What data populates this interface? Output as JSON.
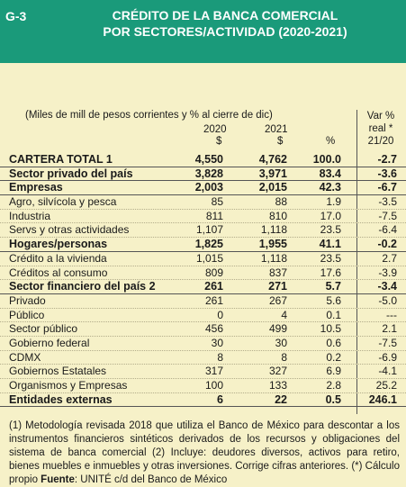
{
  "header": {
    "code": "G-3",
    "title_line1": "CRÉDITO DE LA BANCA COMERCIAL",
    "title_line2": "POR SECTORES/ACTIVIDAD (2020-2021)"
  },
  "table": {
    "subtitle": "(Miles de mill de pesos corrientes y % al cierre de dic)",
    "var_header_line1": "Var %",
    "var_header_line2": "real *",
    "var_header_line3": "21/20",
    "year_2020": "2020",
    "year_2021": "2021",
    "unit_2020": "$",
    "unit_2021": "$",
    "unit_pct": "%",
    "rows": [
      {
        "label": "CARTERA TOTAL 1",
        "v2020": "4,550",
        "v2021": "4,762",
        "pct": "100.0",
        "var": "-2.7",
        "bold": true
      },
      {
        "label": "Sector privado del país",
        "v2020": "3,828",
        "v2021": "3,971",
        "pct": "83.4",
        "var": "-3.6",
        "bold": true
      },
      {
        "label": "Empresas",
        "v2020": "2,003",
        "v2021": "2,015",
        "pct": "42.3",
        "var": "-6.7",
        "bold": true
      },
      {
        "label": "Agro, silvícola y pesca",
        "v2020": "85",
        "v2021": "88",
        "pct": "1.9",
        "var": "-3.5",
        "bold": false
      },
      {
        "label": "Industria",
        "v2020": "811",
        "v2021": "810",
        "pct": "17.0",
        "var": "-7.5",
        "bold": false
      },
      {
        "label": "Servs y otras actividades",
        "v2020": "1,107",
        "v2021": "1,118",
        "pct": "23.5",
        "var": "-6.4",
        "bold": false
      },
      {
        "label": "Hogares/personas",
        "v2020": "1,825",
        "v2021": "1,955",
        "pct": "41.1",
        "var": "-0.2",
        "bold": true
      },
      {
        "label": "Crédito a la vivienda",
        "v2020": "1,015",
        "v2021": "1,118",
        "pct": "23.5",
        "var": "2.7",
        "bold": false
      },
      {
        "label": "Créditos al consumo",
        "v2020": "809",
        "v2021": "837",
        "pct": "17.6",
        "var": "-3.9",
        "bold": false
      },
      {
        "label": "Sector financiero del país 2",
        "v2020": "261",
        "v2021": "271",
        "pct": "5.7",
        "var": "-3.4",
        "bold": true
      },
      {
        "label": "Privado",
        "v2020": "261",
        "v2021": "267",
        "pct": "5.6",
        "var": "-5.0",
        "bold": false
      },
      {
        "label": "Público",
        "v2020": "0",
        "v2021": "4",
        "pct": "0.1",
        "var": "---",
        "bold": false
      },
      {
        "label": "Sector público",
        "v2020": "456",
        "v2021": "499",
        "pct": "10.5",
        "var": "2.1",
        "bold": false
      },
      {
        "label": "Gobierno federal",
        "v2020": "30",
        "v2021": "30",
        "pct": "0.6",
        "var": "-7.5",
        "bold": false
      },
      {
        "label": "CDMX",
        "v2020": "8",
        "v2021": "8",
        "pct": "0.2",
        "var": "-6.9",
        "bold": false
      },
      {
        "label": "Gobiernos Estatales",
        "v2020": "317",
        "v2021": "327",
        "pct": "6.9",
        "var": "-4.1",
        "bold": false
      },
      {
        "label": "Organismos y Empresas",
        "v2020": "100",
        "v2021": "133",
        "pct": "2.8",
        "pct_": "",
        "var": "25.2",
        "bold": false
      },
      {
        "label": "Entidades externas",
        "v2020": "6",
        "v2021": "22",
        "pct": "0.5",
        "var": "246.1",
        "bold": true
      }
    ]
  },
  "notes": {
    "text": "(1) Metodología revisada 2018 que utiliza el Banco de México para descontar a los instrumentos financieros sintéticos derivados de los recursos y obligaciones del sistema de banca comercial (2) Incluye: deudores diversos, activos para retiro, bienes muebles e inmuebles y otras inversiones. Corrige cifras anteriores. (*) Cálculo propio ",
    "fuente_label": "Fuente",
    "fuente_text": ": UNITÉ c/d del Banco de México"
  },
  "colors": {
    "header_bg": "#1a9a7a",
    "page_bg": "#f6f1c8"
  }
}
